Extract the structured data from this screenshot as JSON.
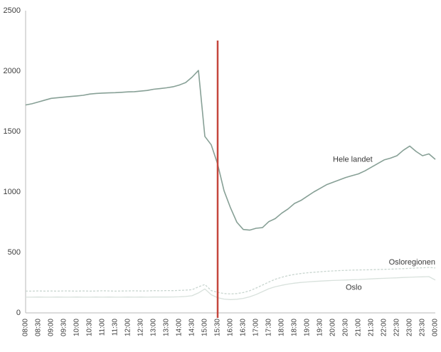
{
  "chart_data": {
    "type": "line",
    "title": "",
    "xlabel": "",
    "ylabel": "",
    "ylim": [
      0,
      2500
    ],
    "y_ticks": [
      0,
      500,
      1000,
      1500,
      2000,
      2500
    ],
    "grid": false,
    "legend_position": "inline-labels",
    "x_tick_rotation": 90,
    "axis_color": "#b8b8b8",
    "x_tick_labels": [
      "08:00",
      "08:30",
      "09:00",
      "09:30",
      "10:00",
      "10:30",
      "11:00",
      "11:30",
      "12:00",
      "12:30",
      "13:00",
      "13:30",
      "14:00",
      "14:30",
      "15:00",
      "15:30",
      "16:00",
      "16:30",
      "17:00",
      "17:30",
      "18:00",
      "18:30",
      "19:00",
      "19:30",
      "20:00",
      "20:30",
      "21:00",
      "21:30",
      "22:00",
      "22:30",
      "23:00",
      "23:30",
      "00:00"
    ],
    "x": [
      "08:00",
      "08:15",
      "08:30",
      "08:45",
      "09:00",
      "09:15",
      "09:30",
      "09:45",
      "10:00",
      "10:15",
      "10:30",
      "10:45",
      "11:00",
      "11:15",
      "11:30",
      "11:45",
      "12:00",
      "12:15",
      "12:30",
      "12:45",
      "13:00",
      "13:15",
      "13:30",
      "13:45",
      "14:00",
      "14:15",
      "14:30",
      "14:45",
      "15:00",
      "15:15",
      "15:30",
      "15:45",
      "16:00",
      "16:15",
      "16:30",
      "16:45",
      "17:00",
      "17:15",
      "17:30",
      "17:45",
      "18:00",
      "18:15",
      "18:30",
      "18:45",
      "19:00",
      "19:15",
      "19:30",
      "19:45",
      "20:00",
      "20:15",
      "20:30",
      "20:45",
      "21:00",
      "21:15",
      "21:30",
      "21:45",
      "22:00",
      "22:15",
      "22:30",
      "22:45",
      "23:00",
      "23:15",
      "23:30",
      "23:45",
      "00:00"
    ],
    "series": [
      {
        "name": "Hele landet",
        "slug": "hele-landet",
        "color": "#87A096",
        "width": 1.6,
        "dash": null,
        "values": [
          1720,
          1730,
          1745,
          1760,
          1775,
          1780,
          1785,
          1790,
          1795,
          1800,
          1810,
          1815,
          1818,
          1820,
          1822,
          1825,
          1828,
          1830,
          1835,
          1840,
          1850,
          1855,
          1862,
          1870,
          1885,
          1905,
          1950,
          2005,
          1460,
          1390,
          1230,
          1010,
          870,
          750,
          690,
          685,
          700,
          705,
          755,
          780,
          825,
          860,
          905,
          930,
          965,
          1000,
          1030,
          1060,
          1080,
          1100,
          1120,
          1135,
          1150,
          1175,
          1205,
          1235,
          1265,
          1280,
          1300,
          1345,
          1380,
          1335,
          1300,
          1315,
          1270
        ]
      },
      {
        "name": "Osloregionen",
        "slug": "osloregionen",
        "color": "#C8D5CF",
        "width": 1.3,
        "dash": "3,2",
        "values": [
          180,
          180,
          182,
          180,
          181,
          180,
          182,
          181,
          180,
          182,
          180,
          181,
          183,
          182,
          180,
          181,
          182,
          183,
          181,
          182,
          184,
          183,
          185,
          184,
          186,
          188,
          192,
          215,
          235,
          185,
          170,
          160,
          157,
          160,
          168,
          183,
          205,
          230,
          255,
          278,
          295,
          308,
          318,
          326,
          332,
          336,
          340,
          344,
          347,
          350,
          352,
          354,
          355,
          356,
          357,
          359,
          360,
          362,
          364,
          366,
          368,
          371,
          373,
          376,
          372
        ]
      },
      {
        "name": "Oslo",
        "slug": "oslo",
        "color": "#D8E1DC",
        "width": 1.3,
        "dash": null,
        "values": [
          130,
          130,
          131,
          130,
          130,
          131,
          130,
          130,
          131,
          130,
          130,
          131,
          130,
          131,
          130,
          130,
          131,
          130,
          131,
          130,
          131,
          132,
          131,
          132,
          133,
          136,
          142,
          165,
          198,
          150,
          126,
          114,
          110,
          113,
          120,
          133,
          152,
          176,
          200,
          216,
          228,
          238,
          246,
          252,
          256,
          260,
          263,
          266,
          268,
          270,
          272,
          274,
          276,
          279,
          281,
          284,
          286,
          288,
          290,
          293,
          295,
          297,
          298,
          300,
          272
        ]
      }
    ],
    "annotations": [
      {
        "text": "Hele landet",
        "slug": "hele-landet",
        "x": "20:00",
        "y": 1250,
        "anchor": "start"
      },
      {
        "text": "Osloregionen",
        "slug": "osloregionen",
        "x": "00:00",
        "y": 400,
        "anchor": "end"
      },
      {
        "text": "Oslo",
        "slug": "oslo",
        "x": "20:30",
        "y": 190,
        "anchor": "start"
      }
    ],
    "vline": {
      "x": "15:30",
      "color": "#C5463C",
      "width": 2.5
    }
  }
}
